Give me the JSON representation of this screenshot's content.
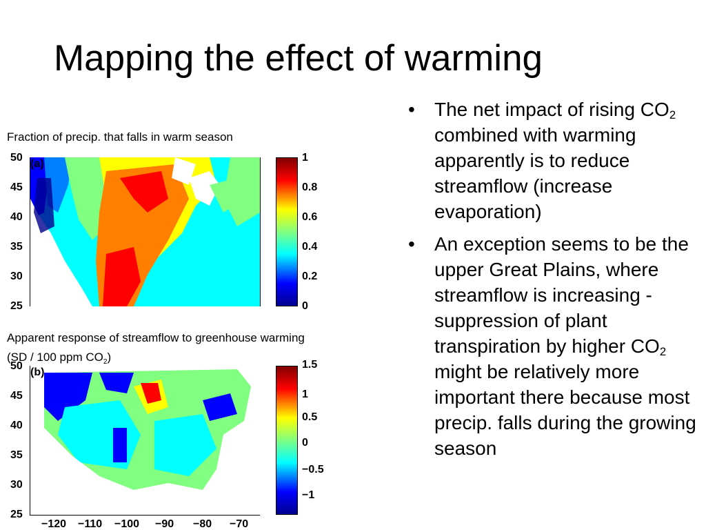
{
  "slide": {
    "title": "Mapping the effect of warming"
  },
  "map_a": {
    "caption": "Fraction of precip. that falls in warm season",
    "panel_label": "(a)",
    "y_ticks": [
      "50",
      "45",
      "40",
      "35",
      "30",
      "25"
    ],
    "colorbar_ticks": [
      "1",
      "0.8",
      "0.6",
      "0.4",
      "0.2",
      "0"
    ]
  },
  "map_b": {
    "caption_line1": "Apparent response of streamflow to greenhouse warming",
    "caption_line2_pre": "(SD / 100 ppm CO",
    "caption_line2_sub": "2",
    "caption_line2_post": ")",
    "panel_label": "(b)",
    "y_ticks": [
      "50",
      "45",
      "40",
      "35",
      "30",
      "25"
    ],
    "x_ticks": [
      "−120",
      "−110",
      "−100",
      "−90",
      "−80",
      "−70"
    ],
    "colorbar_ticks": [
      "1.5",
      "1",
      "0.5",
      "0",
      "−0.5",
      "−1"
    ]
  },
  "bullets": [
    {
      "pre": "The net impact of rising CO",
      "sub": "2",
      "post": " combined with warming apparently is to reduce streamflow (increase evaporation)"
    },
    {
      "pre": "An exception seems to be the upper Great Plains, where streamflow is increasing - suppression of plant transpiration by higher CO",
      "sub": "2",
      "post": " might be relatively more important there because most precip. falls during the growing season"
    }
  ],
  "bullet_symbol": "•",
  "colormap": [
    "#00008f",
    "#0000ff",
    "#0080ff",
    "#00ffff",
    "#80ff80",
    "#ffff00",
    "#ff8000",
    "#ff0000",
    "#800000"
  ]
}
